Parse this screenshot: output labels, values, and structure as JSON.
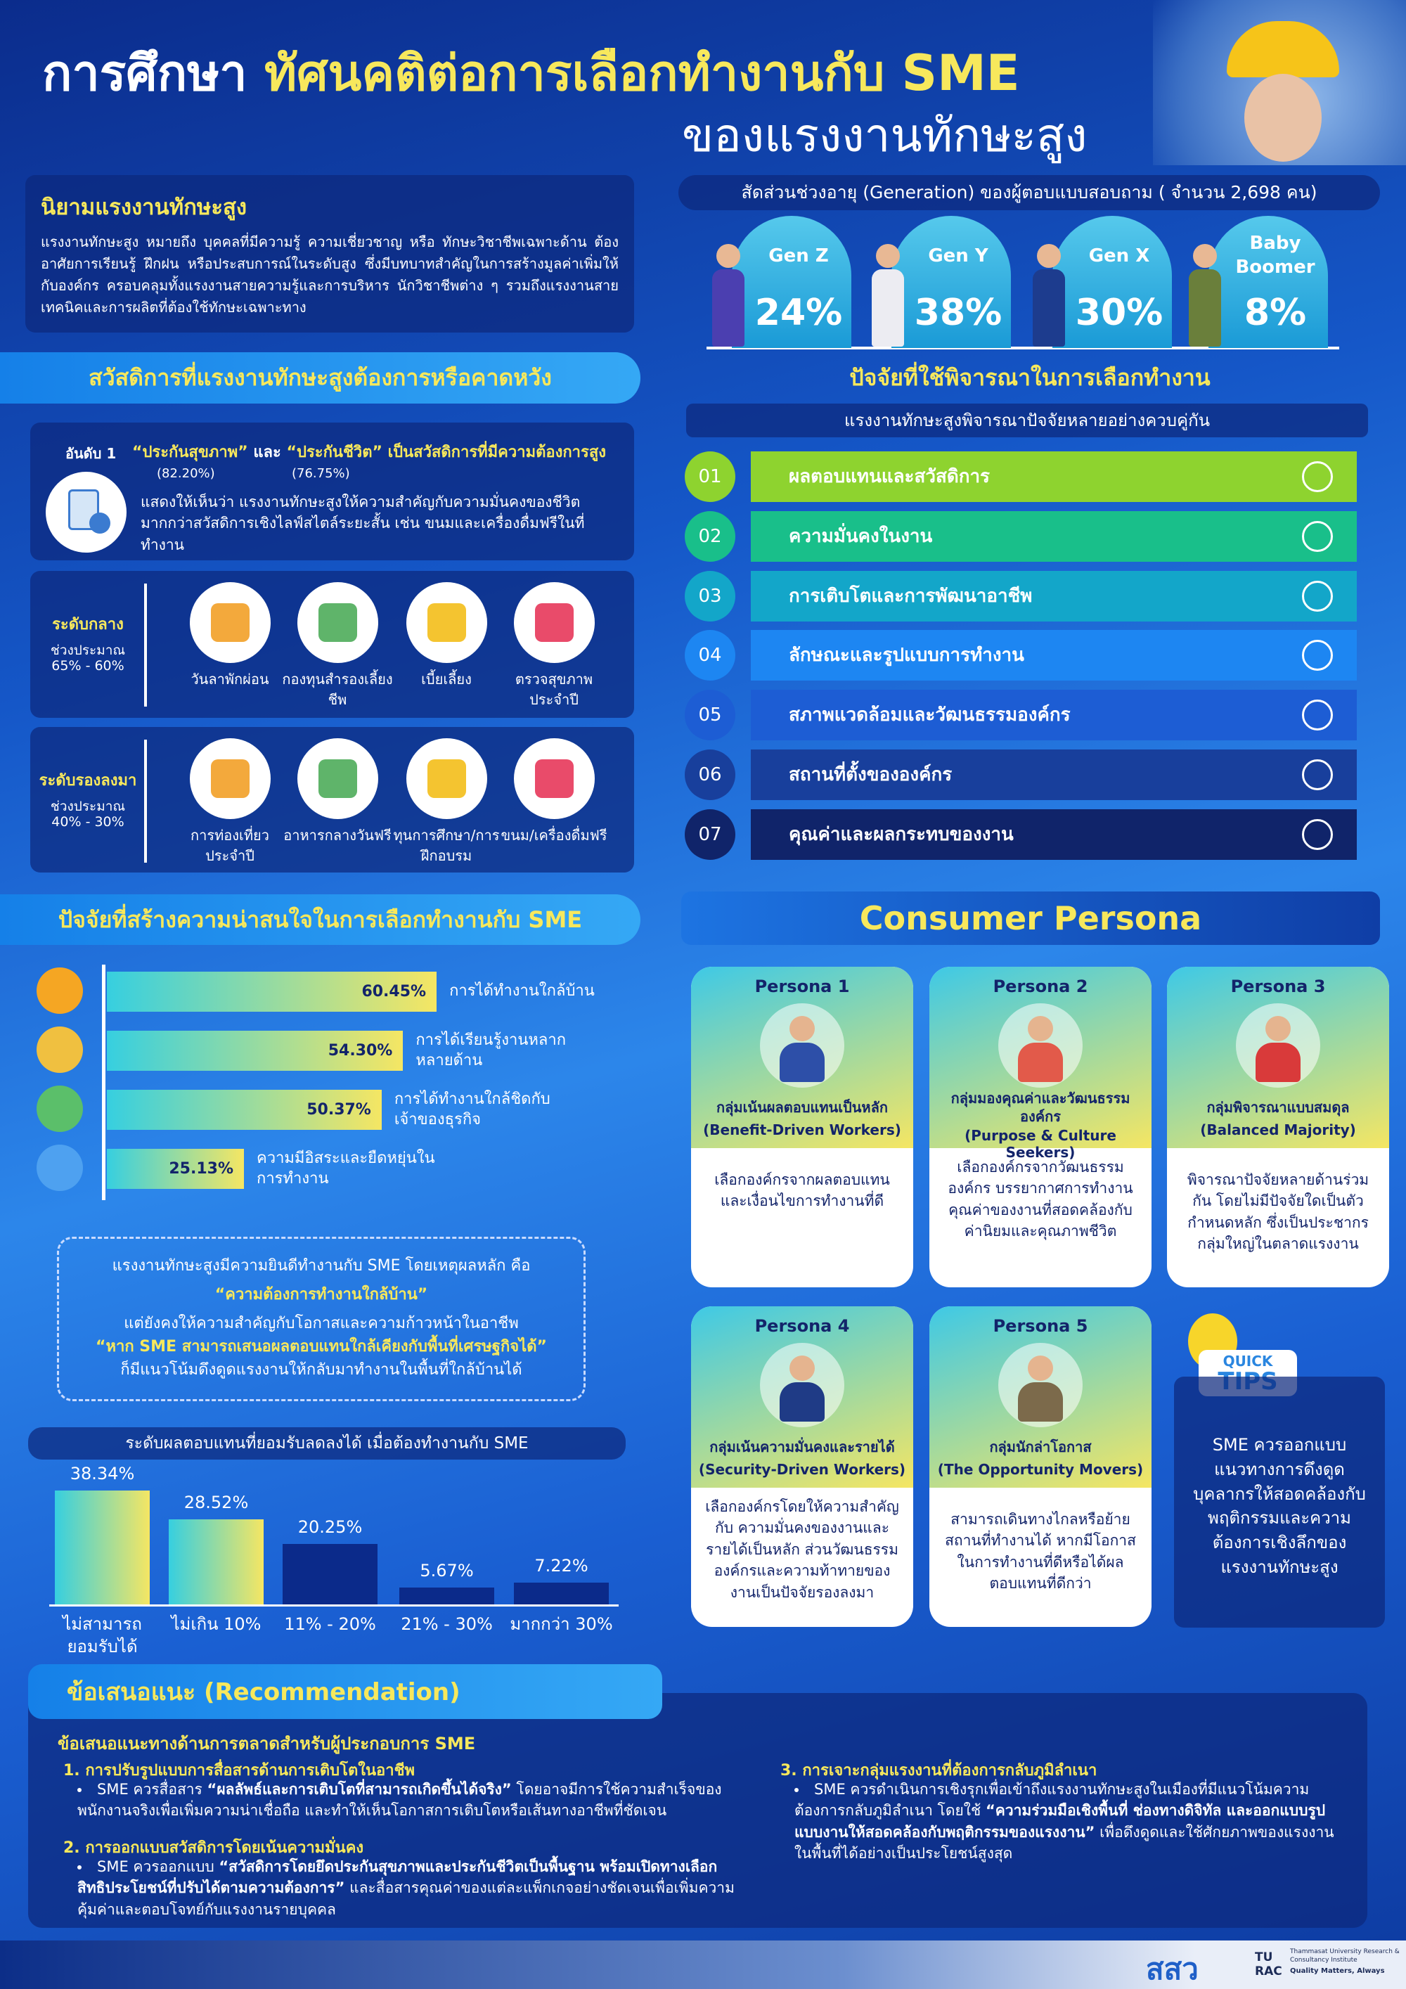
{
  "header": {
    "title_prefix": "การศึกษา",
    "title_highlight": "ทัศนคติต่อการเลือกทำงานกับ SME",
    "title_line2": "ของแรงงานทักษะสูง"
  },
  "definition": {
    "title": "นิยามแรงงานทักษะสูง",
    "text": "แรงงานทักษะสูง หมายถึง บุคคลที่มีความรู้ ความเชี่ยวชาญ หรือ ทักษะวิชาชีพเฉพาะด้าน ต้องอาศัยการเรียนรู้ ฝึกฝน หรือประสบการณ์ในระดับสูง ซึ่งมีบทบาทสำคัญในการสร้างมูลค่าเพิ่มให้กับองค์กร ครอบคลุมทั้งแรงงานสายความรู้และการบริหาร นักวิชาชีพต่าง ๆ รวมถึงแรงงานสายเทคนิคและการผลิตที่ต้องใช้ทักษะเฉพาะทาง"
  },
  "generations": {
    "title": "สัดส่วนช่วงอายุ (Generation) ของผู้ตอบแบบสอบถาม ( จำนวน 2,698 คน)",
    "categories": [
      "Gen Z",
      "Gen Y",
      "Gen X",
      "Baby Boomer"
    ],
    "values": [
      24,
      38,
      30,
      8
    ],
    "value_labels": [
      "24%",
      "38%",
      "30%",
      "8%"
    ]
  },
  "welfare": {
    "title": "สวัสดิการที่แรงงานทักษะสูงต้องการหรือคาดหวัง",
    "rank1": {
      "label": "อันดับ 1",
      "headline_a": "“ประกันสุขภาพ”",
      "connector": "และ",
      "headline_b": "“ประกันชีวิต”",
      "headline_end": "เป็นสวัสดิการที่มีความต้องการสูง",
      "pct_a": "(82.20%)",
      "pct_b": "(76.75%)",
      "text": "แสดงให้เห็นว่า แรงงานทักษะสูงให้ความสำคัญกับความมั่นคงของชีวิต มากกว่าสวัสดิการเชิงไลฟ์สไตล์ระยะสั้น เช่น ขนมและเครื่องดื่มฟรีในที่ทำงาน"
    },
    "middle": {
      "level": "ระดับกลาง",
      "range_label": "ช่วงประมาณ",
      "range": "65% - 60%",
      "items": [
        "วันลาพักผ่อน",
        "กองทุนสำรองเลี้ยงชีพ",
        "เบี้ยเลี้ยง",
        "ตรวจสุขภาพประจำปี"
      ]
    },
    "lower": {
      "level": "ระดับรองลงมา",
      "range_label": "ช่วงประมาณ",
      "range": "40% - 30%",
      "items": [
        "การท่องเที่ยวประจำปี",
        "อาหารกลางวันฟรี",
        "ทุนการศึกษา/การฝึกอบรม",
        "ขนม/เครื่องดื่มฟรี"
      ]
    }
  },
  "factors": {
    "title": "ปัจจัยที่ใช้พิจารณาในการเลือกทำงาน",
    "subtitle": "แรงงานทักษะสูงพิจารณาปัจจัยหลายอย่างควบคู่กัน",
    "items": [
      {
        "num": "01",
        "label": "ผลตอบแทนและสวัสดิการ"
      },
      {
        "num": "02",
        "label": "ความมั่นคงในงาน"
      },
      {
        "num": "03",
        "label": "การเติบโตและการพัฒนาอาชีพ"
      },
      {
        "num": "04",
        "label": "ลักษณะและรูปแบบการทำงาน"
      },
      {
        "num": "05",
        "label": "สภาพแวดล้อมและวัฒนธรรมองค์กร"
      },
      {
        "num": "06",
        "label": "สถานที่ตั้งขององค์กร"
      },
      {
        "num": "07",
        "label": "คุณค่าและผลกระทบของงาน"
      }
    ]
  },
  "attraction": {
    "title": "ปัจจัยที่สร้างความน่าสนใจในการเลือกทำงานกับ SME",
    "categories": [
      "การได้ทำงานใกล้บ้าน",
      "การได้เรียนรู้งานหลากหลายด้าน",
      "การได้ทำงานใกล้ชิดกับเจ้าของธุรกิจ",
      "ความมีอิสระและยืดหยุ่นในการทำงาน"
    ],
    "values": [
      60.45,
      54.3,
      50.37,
      25.13
    ],
    "value_labels": [
      "60.45%",
      "54.30%",
      "50.37%",
      "25.13%"
    ]
  },
  "note": {
    "line1": "แรงงานทักษะสูงมีความยินดีทำงานกับ SME โดยเหตุผลหลัก คือ",
    "highlight1": "“ความต้องการทำงานใกล้บ้าน”",
    "line2": "แต่ยังคงให้ความสำคัญกับโอกาสและความก้าวหน้าในอาชีพ",
    "highlight2": "“หาก SME สามารถเสนอผลตอบแทนใกล้เคียงกับพื้นที่เศรษฐกิจได้”",
    "line3": "ก็มีแนวโน้มดึงดูดแรงงานให้กลับมาทำงานในพื้นที่ใกล้บ้านได้"
  },
  "salary": {
    "title": "ระดับผลตอบแทนที่ยอมรับลดลงได้ เมื่อต้องทำงานกับ SME",
    "categories": [
      "ไม่สามารถยอมรับได้",
      "ไม่เกิน 10%",
      "11% - 20%",
      "21% - 30%",
      "มากกว่า 30%"
    ],
    "values": [
      38.34,
      28.52,
      20.25,
      5.67,
      7.22
    ],
    "value_labels": [
      "38.34%",
      "28.52%",
      "20.25%",
      "5.67%",
      "7.22%"
    ]
  },
  "personas": {
    "title": "Consumer Persona",
    "items": [
      {
        "label": "Persona 1",
        "name": "กลุ่มเน้นผลตอบแทนเป็นหลัก",
        "name_en": "(Benefit-Driven Workers)",
        "text": "เลือกองค์กรจากผลตอบแทนและเงื่อนไขการทำงานที่ดี"
      },
      {
        "label": "Persona 2",
        "name": "กลุ่มมองคุณค่าและวัฒนธรรมองค์กร",
        "name_en": "(Purpose & Culture Seekers)",
        "text": "เลือกองค์กรจากวัฒนธรรมองค์กร บรรยากาศการทำงาน คุณค่าของงานที่สอดคล้องกับค่านิยมและคุณภาพชีวิต"
      },
      {
        "label": "Persona 3",
        "name": "กลุ่มพิจารณาแบบสมดุล",
        "name_en": "(Balanced Majority)",
        "text": "พิจารณาปัจจัยหลายด้านร่วมกัน โดยไม่มีปัจจัยใดเป็นตัวกำหนดหลัก ซึ่งเป็นประชากรกลุ่มใหญ่ในตลาดแรงงาน"
      },
      {
        "label": "Persona 4",
        "name": "กลุ่มเน้นความมั่นคงและรายได้",
        "name_en": "(Security-Driven Workers)",
        "text": "เลือกองค์กรโดยให้ความสำคัญกับ ความมั่นคงของงานและรายได้เป็นหลัก ส่วนวัฒนธรรมองค์กรและความท้าทายของงานเป็นปัจจัยรองลงมา"
      },
      {
        "label": "Persona 5",
        "name": "กลุ่มนักล่าโอกาส",
        "name_en": "(The Opportunity Movers)",
        "text": "สามารถเดินทางไกลหรือย้ายสถานที่ทำงานได้ หากมีโอกาสในการทำงานที่ดีหรือได้ผลตอบแทนที่ดีกว่า"
      }
    ]
  },
  "tips": {
    "badge_top": "QUICK",
    "badge": "TIPS",
    "text": "SME ควรออกแบบแนวทางการดึงดูดบุคลากรให้สอดคล้องกับพฤติกรรมและความต้องการเชิงลึกของแรงงานทักษะสูง"
  },
  "recommendation": {
    "title": "ข้อเสนอแนะ (Recommendation)",
    "subtitle": "ข้อเสนอแนะทางด้านการตลาดสำหรับผู้ประกอบการ SME",
    "items": [
      {
        "heading": "1. การปรับรูปแบบการสื่อสารด้านการเติบโตในอาชีพ",
        "pre": "SME ควรสื่อสาร",
        "bold": "“ผลลัพธ์และการเติบโตที่สามารถเกิดขึ้นได้จริง”",
        "post": "โดยอาจมีการใช้ความสำเร็จของพนักงานจริงเพื่อเพิ่มความน่าเชื่อถือ และทำให้เห็นโอกาสการเติบโตหรือเส้นทางอาชีพที่ชัดเจน"
      },
      {
        "heading": "2. การออกแบบสวัสดิการโดยเน้นความมั่นคง",
        "pre": "SME ควรออกแบบ",
        "bold": "“สวัสดิการโดยยึดประกันสุขภาพและประกันชีวิตเป็นพื้นฐาน พร้อมเปิดทางเลือกสิทธิประโยชน์ที่ปรับได้ตามความต้องการ”",
        "post": "และสื่อสารคุณค่าของแต่ละแพ็กเกจอย่างชัดเจนเพื่อเพิ่มความคุ้มค่าและตอบโจทย์กับแรงงานรายบุคคล"
      },
      {
        "heading": "3. การเจาะกลุ่มแรงงานที่ต้องการกลับภูมิลำเนา",
        "pre": "SME ควรดำเนินการเชิงรุกเพื่อเข้าถึงแรงงานทักษะสูงในเมืองที่มีแนวโน้มความต้องการกลับภูมิลำเนา โดยใช้",
        "bold": "“ความร่วมมือเชิงพื้นที่ ช่องทางดิจิทัล และออกแบบรูปแบบงานให้สอดคล้องกับพฤติกรรมของแรงงาน”",
        "post": "เพื่อดึงดูดและใช้ศักยภาพของแรงงานในพื้นที่ได้อย่างเป็นประโยชน์สูงสุด"
      }
    ]
  },
  "footer": {
    "logo": "สสว",
    "org_logo": "TU RAC",
    "org_name": "Thammasat University Research & Consultancy Institute",
    "org_tagline": "Quality Matters, Always"
  }
}
